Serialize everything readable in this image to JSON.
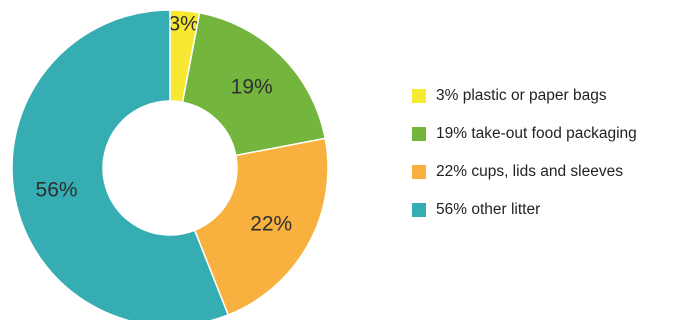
{
  "chart_data": {
    "type": "pie",
    "slices": [
      {
        "label": "3%",
        "legend": "3% plastic or paper bags",
        "value": 3,
        "color": "#f7e931"
      },
      {
        "label": "19%",
        "legend": "19% take-out food packaging",
        "value": 19,
        "color": "#74b53d"
      },
      {
        "label": "22%",
        "legend": "22% cups, lids and sleeves",
        "value": 22,
        "color": "#f8b03f"
      },
      {
        "label": "56%",
        "legend": "56% other litter",
        "value": 56,
        "color": "#35adb3"
      }
    ],
    "donut": true,
    "legend_position": "right"
  }
}
